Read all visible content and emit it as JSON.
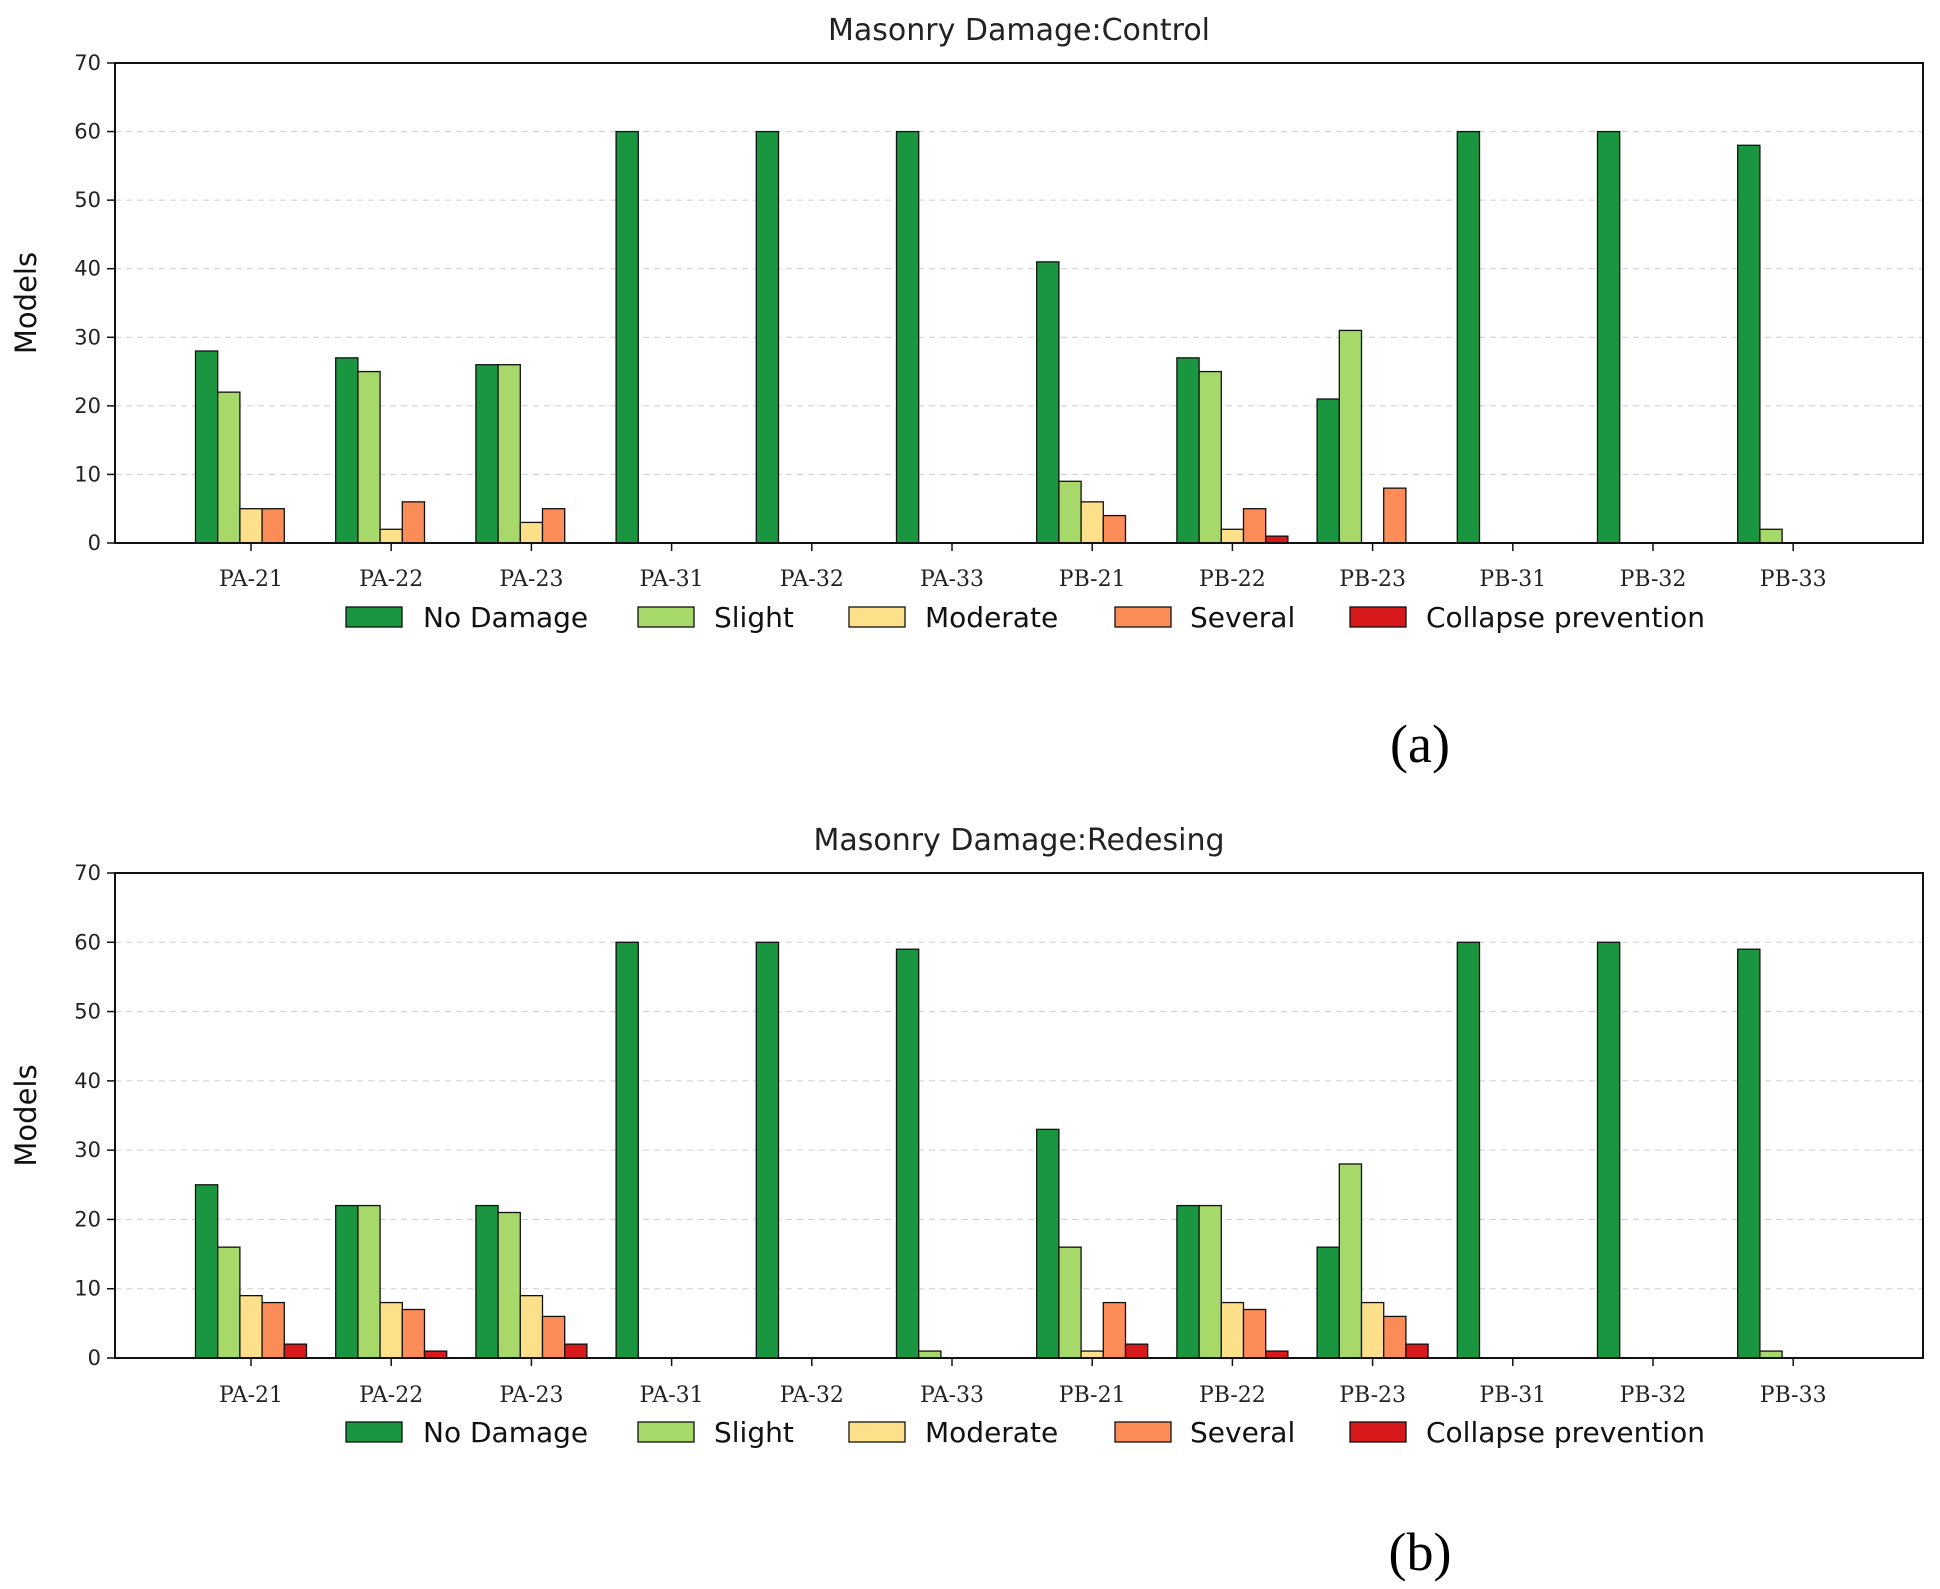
{
  "chart_data": [
    {
      "type": "bar",
      "title": "Masonry Damage:Control",
      "panel_label": "(a)",
      "xlabel": "",
      "ylabel": "Models",
      "ylim": [
        0,
        70
      ],
      "yticks": [
        0,
        10,
        20,
        30,
        40,
        50,
        60,
        70
      ],
      "grid": "horizontal dashed",
      "legend_position": "bottom-center",
      "categories": [
        "PA-21",
        "PA-22",
        "PA-23",
        "PA-31",
        "PA-32",
        "PA-33",
        "PB-21",
        "PB-22",
        "PB-23",
        "PB-31",
        "PB-32",
        "PB-33"
      ],
      "series": [
        {
          "name": "No Damage",
          "color": "#1a9641",
          "values": [
            28,
            27,
            26,
            60,
            60,
            60,
            41,
            27,
            21,
            60,
            60,
            58
          ]
        },
        {
          "name": "Slight",
          "color": "#a6d96a",
          "values": [
            22,
            25,
            26,
            0,
            0,
            0,
            9,
            25,
            31,
            0,
            0,
            2
          ]
        },
        {
          "name": "Moderate",
          "color": "#fee08b",
          "values": [
            5,
            2,
            3,
            0,
            0,
            0,
            6,
            2,
            0,
            0,
            0,
            0
          ]
        },
        {
          "name": "Several",
          "color": "#fc8d59",
          "values": [
            5,
            6,
            5,
            0,
            0,
            0,
            4,
            5,
            8,
            0,
            0,
            0
          ]
        },
        {
          "name": "Collapse prevention",
          "color": "#d7191c",
          "values": [
            0,
            0,
            0,
            0,
            0,
            0,
            0,
            1,
            0,
            0,
            0,
            0
          ]
        }
      ]
    },
    {
      "type": "bar",
      "title": "Masonry Damage:Redesing",
      "panel_label": "(b)",
      "xlabel": "",
      "ylabel": "Models",
      "ylim": [
        0,
        70
      ],
      "yticks": [
        0,
        10,
        20,
        30,
        40,
        50,
        60,
        70
      ],
      "grid": "horizontal dashed",
      "legend_position": "bottom-center",
      "categories": [
        "PA-21",
        "PA-22",
        "PA-23",
        "PA-31",
        "PA-32",
        "PA-33",
        "PB-21",
        "PB-22",
        "PB-23",
        "PB-31",
        "PB-32",
        "PB-33"
      ],
      "series": [
        {
          "name": "No Damage",
          "color": "#1a9641",
          "values": [
            25,
            22,
            22,
            60,
            60,
            59,
            33,
            22,
            16,
            60,
            60,
            59
          ]
        },
        {
          "name": "Slight",
          "color": "#a6d96a",
          "values": [
            16,
            22,
            21,
            0,
            0,
            1,
            16,
            22,
            28,
            0,
            0,
            1
          ]
        },
        {
          "name": "Moderate",
          "color": "#fee08b",
          "values": [
            9,
            8,
            9,
            0,
            0,
            0,
            1,
            8,
            8,
            0,
            0,
            0
          ]
        },
        {
          "name": "Several",
          "color": "#fc8d59",
          "values": [
            8,
            7,
            6,
            0,
            0,
            0,
            8,
            7,
            6,
            0,
            0,
            0
          ]
        },
        {
          "name": "Collapse prevention",
          "color": "#d7191c",
          "values": [
            2,
            1,
            2,
            0,
            0,
            0,
            2,
            1,
            2,
            0,
            0,
            0
          ]
        }
      ]
    }
  ]
}
